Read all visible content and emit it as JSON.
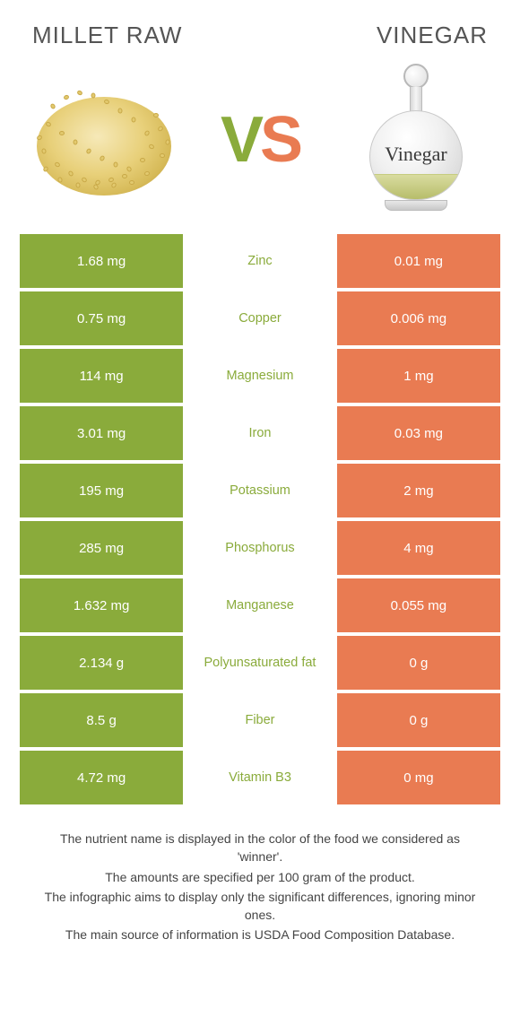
{
  "colors": {
    "left": "#8aab3b",
    "right": "#e97b52",
    "row_bg": "#ffffff",
    "text_white": "#ffffff"
  },
  "header": {
    "left_title": "MILLET RAW",
    "right_title": "VINEGAR",
    "vs_left": "V",
    "vs_right": "S",
    "vinegar_label": "Vinegar"
  },
  "rows": [
    {
      "left": "1.68 mg",
      "name": "Zinc",
      "right": "0.01 mg",
      "winner": "left"
    },
    {
      "left": "0.75 mg",
      "name": "Copper",
      "right": "0.006 mg",
      "winner": "left"
    },
    {
      "left": "114 mg",
      "name": "Magnesium",
      "right": "1 mg",
      "winner": "left"
    },
    {
      "left": "3.01 mg",
      "name": "Iron",
      "right": "0.03 mg",
      "winner": "left"
    },
    {
      "left": "195 mg",
      "name": "Potassium",
      "right": "2 mg",
      "winner": "left"
    },
    {
      "left": "285 mg",
      "name": "Phosphorus",
      "right": "4 mg",
      "winner": "left"
    },
    {
      "left": "1.632 mg",
      "name": "Manganese",
      "right": "0.055 mg",
      "winner": "left"
    },
    {
      "left": "2.134 g",
      "name": "Polyunsaturated fat",
      "right": "0 g",
      "winner": "left"
    },
    {
      "left": "8.5 g",
      "name": "Fiber",
      "right": "0 g",
      "winner": "left"
    },
    {
      "left": "4.72 mg",
      "name": "Vitamin B3",
      "right": "0 mg",
      "winner": "left"
    }
  ],
  "footer": [
    "The nutrient name is displayed in the color of the food we considered as 'winner'.",
    "The amounts are specified per 100 gram of the product.",
    "The infographic aims to display only the significant differences, ignoring minor ones.",
    "The main source of information is USDA Food Composition Database."
  ]
}
